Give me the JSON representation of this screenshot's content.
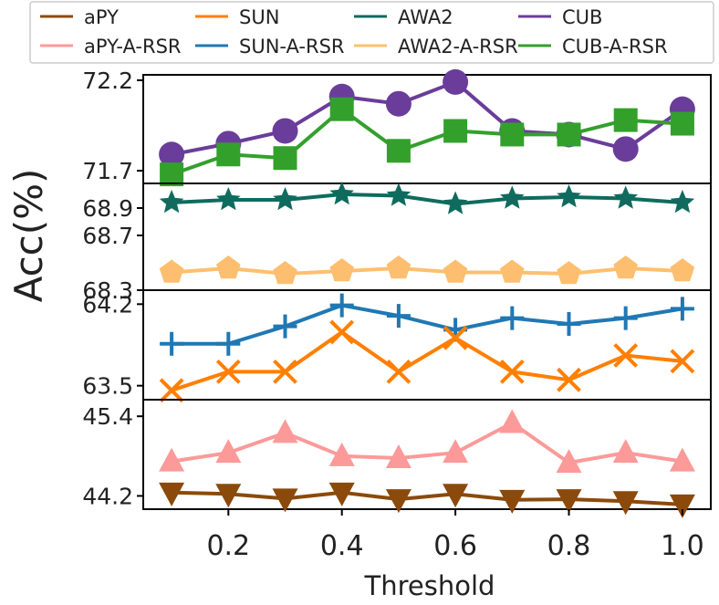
{
  "chart_data": {
    "type": "line",
    "ylabel": "Acc(%)",
    "xlabel": "Threshold",
    "x": [
      0.1,
      0.2,
      0.3,
      0.4,
      0.5,
      0.6,
      0.7,
      0.8,
      0.9,
      1.0
    ],
    "x_ticks": [
      "0.2",
      "0.4",
      "0.6",
      "0.8",
      "1.0"
    ],
    "xlim": [
      0.05,
      1.05
    ],
    "legend": {
      "placement": "top",
      "entries": [
        "aPY",
        "SUN",
        "AWA2",
        "CUB",
        "aPY-A-RSR",
        "SUN-A-RSR",
        "AWA2-A-RSR",
        "CUB-A-RSR"
      ]
    },
    "panels": [
      {
        "ylim": [
          71.63,
          72.23
        ],
        "y_ticks": [
          "72.2",
          "71.7"
        ],
        "series": [
          {
            "name": "CUB",
            "color": "#6a3d9a",
            "marker": "circle",
            "values": [
              71.79,
              71.85,
              71.92,
              72.11,
              72.07,
              72.19,
              71.92,
              71.9,
              71.82,
              72.04
            ]
          },
          {
            "name": "CUB-A-RSR",
            "color": "#33a02c",
            "marker": "square",
            "values": [
              71.68,
              71.79,
              71.77,
              72.04,
              71.81,
              71.92,
              71.9,
              71.9,
              71.98,
              71.96
            ]
          }
        ]
      },
      {
        "ylim": [
          68.3,
          69.08
        ],
        "y_ticks": [
          "68.9",
          "68.7",
          "68.3"
        ],
        "series": [
          {
            "name": "AWA2",
            "color": "#0f6b5e",
            "marker": "star",
            "values": [
              68.94,
              68.96,
              68.96,
              69.0,
              68.99,
              68.93,
              68.97,
              68.98,
              68.97,
              68.94
            ]
          },
          {
            "name": "AWA2-A-RSR",
            "color": "#fdbf6f",
            "marker": "pentagon",
            "values": [
              68.43,
              68.46,
              68.42,
              68.44,
              68.46,
              68.43,
              68.43,
              68.42,
              68.46,
              68.44
            ]
          }
        ]
      },
      {
        "ylim": [
          63.38,
          64.32
        ],
        "y_ticks": [
          "64.2",
          "63.5"
        ],
        "series": [
          {
            "name": "SUN-A-RSR",
            "color": "#1f78b4",
            "marker": "plus",
            "values": [
              63.86,
              63.86,
              64.01,
              64.19,
              64.1,
              63.98,
              64.08,
              64.03,
              64.08,
              64.16
            ]
          },
          {
            "name": "SUN",
            "color": "#ff7f00",
            "marker": "x",
            "values": [
              63.46,
              63.62,
              63.62,
              63.96,
              63.62,
              63.91,
              63.62,
              63.55,
              63.76,
              63.71
            ]
          }
        ]
      },
      {
        "ylim": [
          44.0,
          45.65
        ],
        "y_ticks": [
          "45.4",
          "44.2"
        ],
        "series": [
          {
            "name": "aPY-A-RSR",
            "color": "#fb9a99",
            "marker": "triangle-up",
            "values": [
              44.72,
              44.85,
              45.15,
              44.8,
              44.77,
              44.85,
              45.3,
              44.7,
              44.85,
              44.72
            ]
          },
          {
            "name": "aPY",
            "color": "#8b4a0b",
            "marker": "triangle-down",
            "values": [
              44.25,
              44.23,
              44.16,
              44.25,
              44.15,
              44.23,
              44.14,
              44.15,
              44.12,
              44.07
            ]
          }
        ]
      }
    ]
  }
}
